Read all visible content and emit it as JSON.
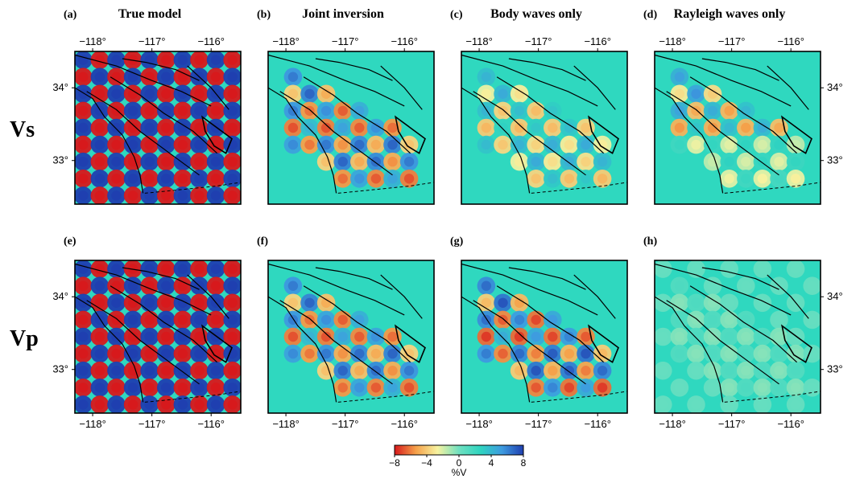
{
  "rows": [
    {
      "label": "Vs",
      "panels": [
        {
          "id": "(a)",
          "title": "True model",
          "field": "true",
          "amp": 1.0
        },
        {
          "id": "(b)",
          "title": "Joint inversion",
          "field": "recovered",
          "amp": 0.75
        },
        {
          "id": "(c)",
          "title": "Body waves only",
          "field": "recovered",
          "amp": 0.5
        },
        {
          "id": "(d)",
          "title": "Rayleigh waves only",
          "field": "rayleigh",
          "amp": 0.6
        }
      ]
    },
    {
      "label": "Vp",
      "panels": [
        {
          "id": "(e)",
          "title": "",
          "field": "true",
          "amp": 1.0
        },
        {
          "id": "(f)",
          "title": "",
          "field": "recovered",
          "amp": 0.75
        },
        {
          "id": "(g)",
          "title": "",
          "field": "recovered",
          "amp": 0.8
        },
        {
          "id": "(h)",
          "title": "",
          "field": "faint",
          "amp": 0.12
        }
      ]
    }
  ],
  "lon_ticks": [
    "−118°",
    "−117°",
    "−116°"
  ],
  "lat_ticks": [
    "34°",
    "33°"
  ],
  "colorbar": {
    "label": "%V",
    "ticks": [
      "−8",
      "−4",
      "0",
      "4",
      "8"
    ],
    "min": -8,
    "max": 8,
    "colors": [
      "#d7191c",
      "#f5a14a",
      "#f7f3a0",
      "#6fe0c0",
      "#2fd4c0",
      "#3e9be0",
      "#1f3fb0"
    ]
  },
  "map_extent": {
    "lon": [
      -118.3,
      -115.5
    ],
    "lat": [
      32.4,
      34.5
    ]
  },
  "colors": {
    "background": "#2fd8bf",
    "fault": "#000000"
  }
}
